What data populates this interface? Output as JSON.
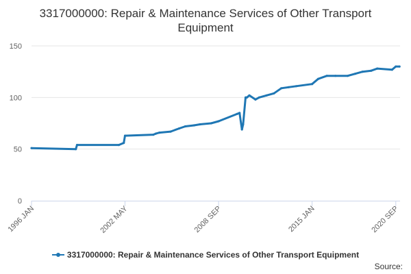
{
  "chart_data": {
    "type": "line",
    "title": "3317000000: Repair & Maintenance Services of Other Transport Equipment",
    "xlabel": "",
    "ylabel": "",
    "ylim": [
      0,
      150
    ],
    "yticks": [
      "0",
      "50",
      "100",
      "150"
    ],
    "xticks": [
      "1996 JAN",
      "2002 MAY",
      "2008 SEP",
      "2015 JAN",
      "2020 SEP"
    ],
    "grid": true,
    "legend_position": "bottom",
    "color": "#1f77b4",
    "series": [
      {
        "name": "3317000000: Repair & Maintenance Services of Other Transport Equipment",
        "x": [
          "1996-01",
          "1999-01",
          "1999-02",
          "2001-12",
          "2002-04",
          "2002-05",
          "2004-04",
          "2004-06",
          "2004-09",
          "2005-06",
          "2006-01",
          "2006-06",
          "2007-01",
          "2007-06",
          "2008-03",
          "2008-09",
          "2009-12",
          "2010-02",
          "2010-04",
          "2010-05",
          "2010-07",
          "2010-08",
          "2010-10",
          "2011-03",
          "2011-06",
          "2011-12",
          "2012-06",
          "2012-12",
          "2013-06",
          "2013-12",
          "2015-01",
          "2015-06",
          "2016-01",
          "2016-08",
          "2017-06",
          "2017-12",
          "2018-06",
          "2019-01",
          "2019-06",
          "2020-06",
          "2020-09",
          "2020-12"
        ],
        "values": [
          51,
          50,
          54,
          54,
          56,
          63,
          64,
          65,
          66,
          67,
          70,
          72,
          73,
          74,
          75,
          77,
          84,
          85,
          69,
          74,
          100,
          100,
          102,
          98,
          100,
          102,
          104,
          109,
          110,
          111,
          113,
          118,
          121,
          121,
          121,
          123,
          125,
          126,
          128,
          127,
          130,
          130
        ]
      }
    ],
    "source_label": "Source:"
  }
}
